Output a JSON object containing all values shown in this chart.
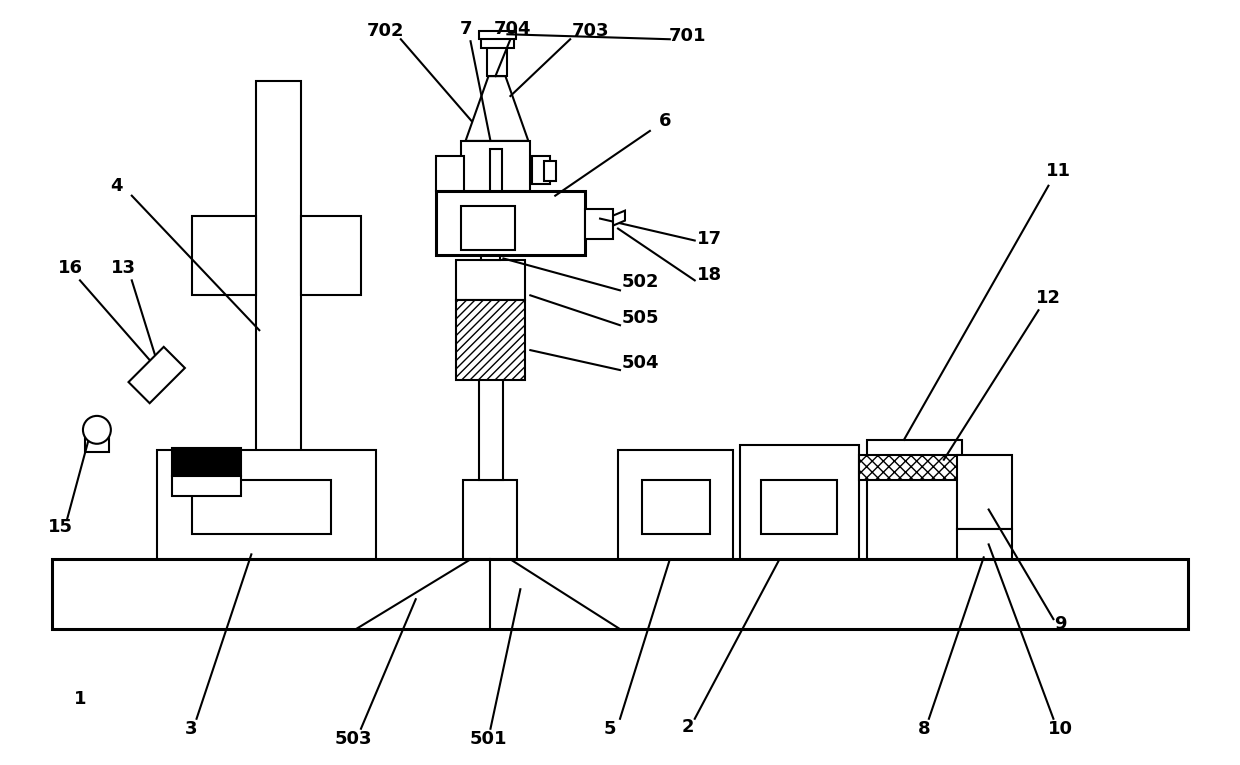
{
  "bg_color": "#ffffff",
  "lc": "#000000",
  "lw": 1.5,
  "lw2": 2.2,
  "fig_width": 12.4,
  "fig_height": 7.65
}
